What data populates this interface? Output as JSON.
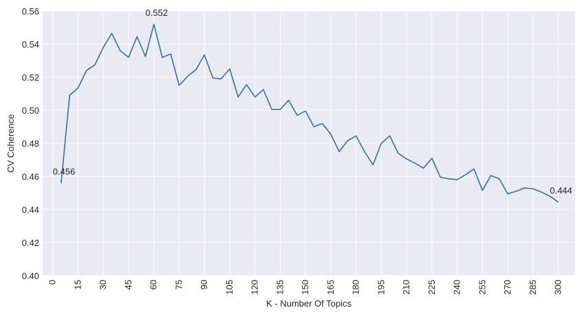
{
  "colors": {
    "plot_background": "#eaeaf2",
    "grid": "#ffffff",
    "line": "#1f77b4",
    "text": "#262626"
  },
  "chart_data": {
    "type": "line",
    "title": "",
    "xlabel": "K - Number Of Topics",
    "ylabel": "CV Coherence",
    "xlim": [
      -6,
      310
    ],
    "ylim": [
      0.4,
      0.56
    ],
    "grid": true,
    "x_ticks": [
      0,
      15,
      30,
      45,
      60,
      75,
      90,
      105,
      120,
      135,
      150,
      165,
      180,
      195,
      210,
      225,
      240,
      255,
      270,
      285,
      300
    ],
    "x_tick_labels": [
      "0",
      "15",
      "30",
      "45",
      "60",
      "75",
      "90",
      "105",
      "120",
      "135",
      "150",
      "165",
      "180",
      "195",
      "210",
      "225",
      "240",
      "255",
      "270",
      "285",
      "300"
    ],
    "y_ticks": [
      0.4,
      0.42,
      0.44,
      0.46,
      0.48,
      0.5,
      0.52,
      0.54,
      0.56
    ],
    "y_tick_labels": [
      "0.40",
      "0.42",
      "0.44",
      "0.46",
      "0.48",
      "0.50",
      "0.52",
      "0.54",
      "0.56"
    ],
    "series": [
      {
        "x": [
          5,
          10,
          15,
          20,
          25,
          30,
          35,
          40,
          45,
          50,
          55,
          60,
          65,
          70,
          75,
          80,
          85,
          90,
          95,
          100,
          105,
          110,
          115,
          120,
          125,
          130,
          135,
          140,
          145,
          150,
          155,
          160,
          165,
          170,
          175,
          180,
          185,
          190,
          195,
          200,
          205,
          210,
          215,
          220,
          225,
          230,
          235,
          240,
          245,
          250,
          255,
          260,
          265,
          270,
          275,
          280,
          285,
          290,
          295,
          300
        ],
        "values": [
          0.456,
          0.509,
          0.5135,
          0.524,
          0.5275,
          0.538,
          0.5465,
          0.536,
          0.532,
          0.5445,
          0.5325,
          0.552,
          0.532,
          0.534,
          0.515,
          0.5205,
          0.5245,
          0.5335,
          0.5195,
          0.519,
          0.525,
          0.508,
          0.5155,
          0.508,
          0.5125,
          0.5005,
          0.5005,
          0.506,
          0.497,
          0.4995,
          0.49,
          0.492,
          0.4855,
          0.475,
          0.4815,
          0.4845,
          0.475,
          0.467,
          0.48,
          0.4845,
          0.474,
          0.4705,
          0.468,
          0.465,
          0.471,
          0.4595,
          0.4585,
          0.458,
          0.461,
          0.4645,
          0.4515,
          0.4605,
          0.4585,
          0.4495,
          0.451,
          0.453,
          0.4525,
          0.4505,
          0.448,
          0.4445
        ]
      }
    ],
    "annotations": [
      {
        "text": "0.456",
        "x": 0,
        "y": 0.461
      },
      {
        "text": "0.552",
        "x": 55,
        "y": 0.557
      },
      {
        "text": "0.444",
        "x": 295,
        "y": 0.4495
      }
    ]
  }
}
